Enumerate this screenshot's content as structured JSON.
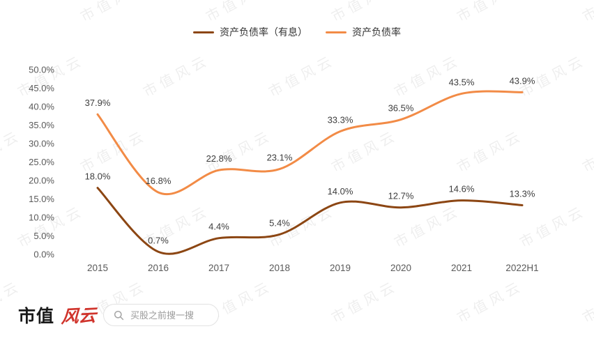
{
  "watermark": {
    "text": "市值风云"
  },
  "chart_data": {
    "type": "line",
    "categories": [
      "2015",
      "2016",
      "2017",
      "2018",
      "2019",
      "2020",
      "2021",
      "2022H1"
    ],
    "series": [
      {
        "name": "资产负债率（有息）",
        "color": "#8C4613",
        "values": [
          18.0,
          0.7,
          4.4,
          5.4,
          14.0,
          12.7,
          14.6,
          13.3
        ]
      },
      {
        "name": "资产负债率",
        "color": "#F28B46",
        "values": [
          37.9,
          16.8,
          22.8,
          23.1,
          33.3,
          36.5,
          43.5,
          43.9
        ]
      }
    ],
    "ylim": [
      0,
      50
    ],
    "ytick_step": 5,
    "ytick_labels": [
      "0.0%",
      "5.0%",
      "10.0%",
      "15.0%",
      "20.0%",
      "25.0%",
      "30.0%",
      "35.0%",
      "40.0%",
      "45.0%",
      "50.0%"
    ],
    "value_suffix": "%",
    "grid": false,
    "legend_position": "top",
    "axis_text_color": "#595959",
    "label_text_color": "#3d3d3d"
  },
  "footer": {
    "logo_black": "市值",
    "logo_red": "风云",
    "search_placeholder": "买股之前搜一搜"
  }
}
